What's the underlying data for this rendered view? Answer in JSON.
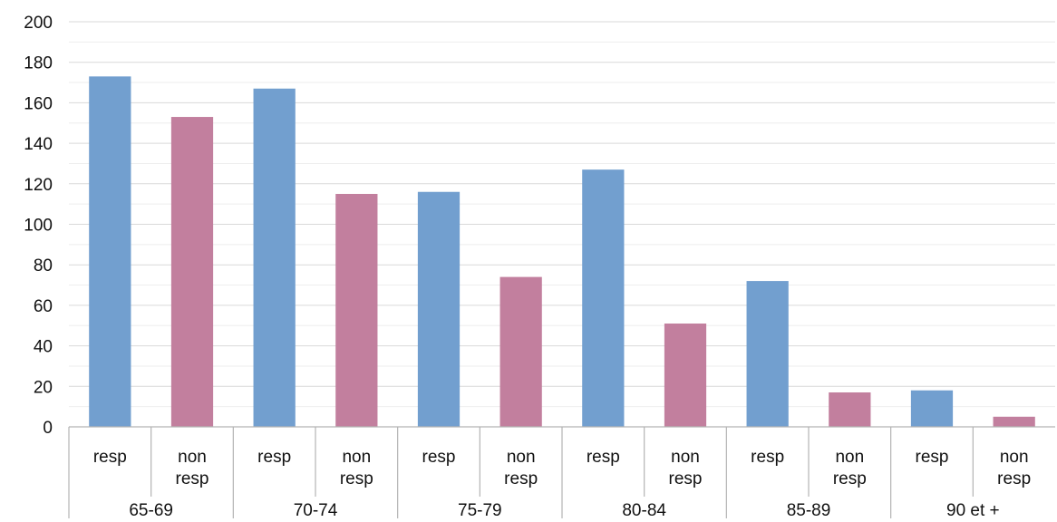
{
  "chart_data": {
    "type": "bar",
    "groups": [
      "65-69",
      "70-74",
      "75-79",
      "80-84",
      "85-89",
      "90 et +"
    ],
    "sub_categories": [
      "resp",
      "non resp"
    ],
    "sub_category_lines": [
      [
        "resp"
      ],
      [
        "non",
        "resp"
      ]
    ],
    "values": [
      [
        173,
        153
      ],
      [
        167,
        115
      ],
      [
        116,
        74
      ],
      [
        127,
        51
      ],
      [
        72,
        17
      ],
      [
        18,
        5
      ]
    ],
    "bar_colors": [
      "#729fcf",
      "#c27f9e"
    ],
    "title": "",
    "xlabel": "",
    "ylabel": "",
    "ylim": [
      0,
      200
    ],
    "yticks": [
      0,
      20,
      40,
      60,
      80,
      100,
      120,
      140,
      160,
      180,
      200
    ],
    "grid": true,
    "legend": "none"
  }
}
